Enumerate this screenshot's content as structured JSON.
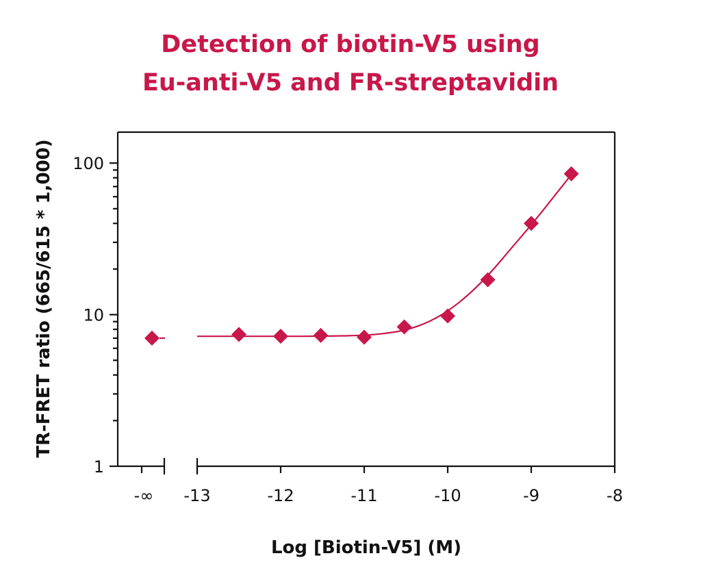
{
  "chart_data": {
    "type": "scatter",
    "title_lines": [
      "Detection of biotin-V5 using",
      "Eu-anti-V5 and FR-streptavidin"
    ],
    "xlabel": "Log [Biotin-V5] (M)",
    "ylabel": "TR-FRET ratio (665/615 * 1,000)",
    "x_scale": "linear",
    "y_scale": "log",
    "xlim": [
      -13,
      -8
    ],
    "ylim": [
      1,
      160
    ],
    "x_ticks": [
      {
        "value": -13,
        "label": "-13"
      },
      {
        "value": -12,
        "label": "-12"
      },
      {
        "value": -11,
        "label": "-11"
      },
      {
        "value": -10,
        "label": "-10"
      },
      {
        "value": -9,
        "label": "-9"
      },
      {
        "value": -8,
        "label": "-8"
      }
    ],
    "x_break_label": "-∞",
    "y_ticks": [
      {
        "value": 1,
        "label": "1"
      },
      {
        "value": 10,
        "label": "10"
      },
      {
        "value": 100,
        "label": "100"
      }
    ],
    "grid": false,
    "marker": "diamond",
    "color": "#c8174a",
    "zero_dose_point": {
      "x": "-∞",
      "y": 7.0
    },
    "points": [
      {
        "x": -12.5,
        "y": 7.4
      },
      {
        "x": -12.0,
        "y": 7.2
      },
      {
        "x": -11.52,
        "y": 7.3
      },
      {
        "x": -11.0,
        "y": 7.1
      },
      {
        "x": -10.52,
        "y": 8.3
      },
      {
        "x": -10.0,
        "y": 9.8
      },
      {
        "x": -9.52,
        "y": 17
      },
      {
        "x": -9.0,
        "y": 40
      },
      {
        "x": -8.52,
        "y": 85
      }
    ],
    "fit_curve": [
      {
        "x": -13.0,
        "y": 7.2
      },
      {
        "x": -12.5,
        "y": 7.2
      },
      {
        "x": -12.0,
        "y": 7.2
      },
      {
        "x": -11.5,
        "y": 7.2
      },
      {
        "x": -11.0,
        "y": 7.3
      },
      {
        "x": -10.75,
        "y": 7.5
      },
      {
        "x": -10.5,
        "y": 7.9
      },
      {
        "x": -10.25,
        "y": 8.8
      },
      {
        "x": -10.0,
        "y": 10.5
      },
      {
        "x": -9.75,
        "y": 13.5
      },
      {
        "x": -9.5,
        "y": 18.5
      },
      {
        "x": -9.25,
        "y": 27
      },
      {
        "x": -9.0,
        "y": 39
      },
      {
        "x": -8.75,
        "y": 58
      },
      {
        "x": -8.52,
        "y": 84
      }
    ]
  }
}
